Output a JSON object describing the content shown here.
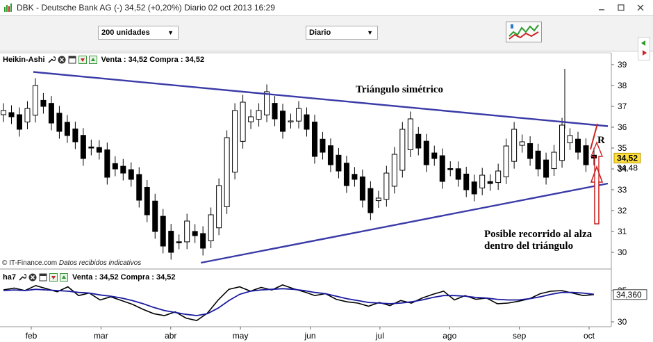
{
  "window": {
    "title": "DBK - Deutsche Bank AG (-)   34,52 (+0,20%)   Diario  02 oct 2013 16:29"
  },
  "toolbar": {
    "units_select": "200 unidades",
    "period_select": "Diario"
  },
  "main_panel": {
    "indicator": "Heikin-Ashi",
    "quote": "Venta : 34,52 Compra : 34,52",
    "credit_source": "© IT-Finance.com",
    "credit_note": "Datos recibidos indicativos",
    "y_ticks": [
      "39",
      "38",
      "37",
      "36",
      "35",
      "34",
      "33",
      "32",
      "31",
      "30"
    ],
    "last_price": "34,52",
    "second_price": "34,48"
  },
  "lower_panel": {
    "indicator": "ha7",
    "quote": "Venta : 34,52 Compra : 34,52",
    "y_ticks": [
      "35",
      "30"
    ],
    "last_value": "34,360"
  },
  "x_axis": {
    "months": [
      "feb",
      "mar",
      "abr",
      "may",
      "jun",
      "jul",
      "ago",
      "sep",
      "oct"
    ]
  },
  "annotations": {
    "pattern_label": "Triángulo simétrico",
    "r_label": "R",
    "target_line1": "Posible recorrido al alza",
    "target_line2": "dentro del triángulo"
  },
  "colors": {
    "trendline": "#3a3aa8",
    "annotation_blue": "#2a3aa0",
    "annotation_red": "#cc2222",
    "ma_line": "#1a1aa0"
  },
  "chart_data": [
    {
      "type": "candlestick",
      "x": [
        "feb",
        "mar",
        "abr",
        "may",
        "jun",
        "jul",
        "ago",
        "sep",
        "oct"
      ],
      "ylim": [
        29.4,
        39.3
      ],
      "closes": [
        36.8,
        36.5,
        35.9,
        36.9,
        38.0,
        37.0,
        36.2,
        35.8,
        35.6,
        35.3,
        34.5,
        35.0,
        34.8,
        33.6,
        34.0,
        33.8,
        33.5,
        32.5,
        31.8,
        31.0,
        30.3,
        30.0,
        30.5,
        31.5,
        30.8,
        30.2,
        31.8,
        33.2,
        35.5,
        36.8,
        37.2,
        36.5,
        36.8,
        37.7,
        36.4,
        35.8,
        36.3,
        36.9,
        35.9,
        34.6,
        34.8,
        34.2,
        33.9,
        33.2,
        33.5,
        32.5,
        31.9,
        32.6,
        33.8,
        34.7,
        35.9,
        36.4,
        35.0,
        34.2,
        34.5,
        33.4,
        34.0,
        33.5,
        33.0,
        32.8,
        33.7,
        33.3,
        33.9,
        35.1,
        35.9,
        35.3,
        34.5,
        34.0,
        33.6,
        34.8,
        36.1,
        35.6,
        34.8,
        34.2,
        34.52
      ],
      "trendlines": [
        {
          "name": "upper",
          "from": [
            0,
            38.65
          ],
          "to": [
            74,
            36.05
          ]
        },
        {
          "name": "lower",
          "from": [
            21,
            29.5
          ],
          "to": [
            74,
            33.3
          ]
        }
      ]
    },
    {
      "type": "line",
      "series": [
        {
          "values": [
            35.1,
            35.4,
            35.0,
            35.8,
            35.3,
            34.8,
            35.6,
            34.2,
            34.6,
            33.5,
            34.0,
            33.4,
            32.8,
            32.0,
            31.3,
            31.0,
            31.6,
            30.6,
            30.2,
            31.4,
            33.5,
            35.2,
            35.6,
            34.9,
            35.5,
            35.1,
            35.9,
            35.3,
            34.8,
            34.2,
            34.5,
            33.6,
            33.2,
            33.0,
            32.5,
            33.1,
            32.6,
            33.4,
            33.0,
            33.8,
            34.4,
            34.9,
            33.5,
            34.2,
            33.6,
            33.8,
            32.9,
            33.0,
            33.3,
            33.7,
            34.5,
            34.9,
            35.0,
            34.6,
            34.2,
            34.36
          ]
        },
        {
          "values": [
            35.0,
            35.1,
            35.0,
            35.2,
            35.1,
            35.0,
            34.9,
            34.7,
            34.6,
            34.3,
            34.1,
            33.8,
            33.4,
            32.9,
            32.3,
            31.8,
            31.5,
            31.2,
            31.0,
            31.3,
            32.2,
            33.4,
            34.4,
            34.9,
            35.1,
            35.2,
            35.3,
            35.2,
            35.0,
            34.7,
            34.5,
            34.1,
            33.7,
            33.4,
            33.1,
            33.0,
            32.9,
            33.0,
            33.2,
            33.5,
            33.9,
            34.2,
            34.2,
            34.1,
            33.9,
            33.8,
            33.6,
            33.5,
            33.5,
            33.7,
            34.0,
            34.4,
            34.7,
            34.7,
            34.6,
            34.4
          ]
        }
      ],
      "ylim": [
        29.5,
        36.0
      ]
    }
  ]
}
